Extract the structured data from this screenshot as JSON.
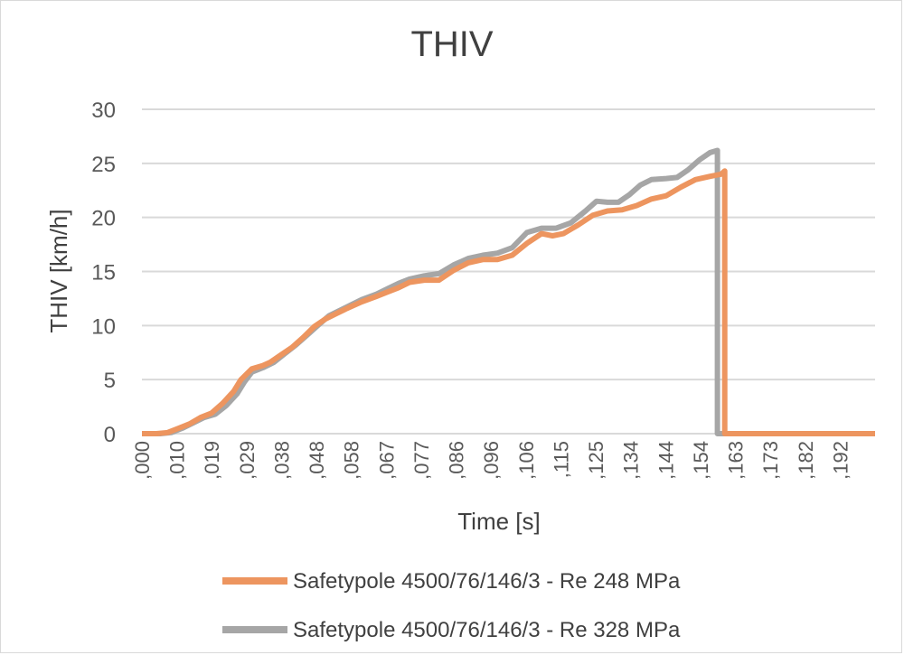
{
  "chart_data": {
    "type": "line",
    "title": "THIV",
    "xlabel": "Time [s]",
    "ylabel": "THIV [km/h]",
    "ylim": [
      0,
      30
    ],
    "yticks": [
      "0",
      "5",
      "10",
      "15",
      "20",
      "25",
      "30"
    ],
    "xlim": [
      0,
      0.2
    ],
    "xticks": [
      ",000",
      ",010",
      ",019",
      ",029",
      ",038",
      ",048",
      ",058",
      ",067",
      ",077",
      ",086",
      ",096",
      ",106",
      ",115",
      ",125",
      ",134",
      ",144",
      ",154",
      ",163",
      ",173",
      ",182",
      ",192"
    ],
    "grid": true,
    "legend_position": "bottom",
    "series": [
      {
        "name": "Safetypole 4500/76/146/3 - Re 248 MPa",
        "color": "#ed955f",
        "points": [
          [
            0.0,
            0.0
          ],
          [
            0.004,
            0.0
          ],
          [
            0.007,
            0.1
          ],
          [
            0.01,
            0.5
          ],
          [
            0.013,
            0.9
          ],
          [
            0.016,
            1.5
          ],
          [
            0.019,
            1.9
          ],
          [
            0.022,
            2.8
          ],
          [
            0.025,
            3.9
          ],
          [
            0.027,
            5.0
          ],
          [
            0.03,
            6.0
          ],
          [
            0.033,
            6.3
          ],
          [
            0.035,
            6.6
          ],
          [
            0.038,
            7.3
          ],
          [
            0.041,
            8.0
          ],
          [
            0.044,
            8.9
          ],
          [
            0.047,
            9.9
          ],
          [
            0.05,
            10.6
          ],
          [
            0.053,
            11.1
          ],
          [
            0.056,
            11.6
          ],
          [
            0.06,
            12.2
          ],
          [
            0.064,
            12.7
          ],
          [
            0.067,
            13.1
          ],
          [
            0.07,
            13.5
          ],
          [
            0.073,
            14.0
          ],
          [
            0.077,
            14.2
          ],
          [
            0.081,
            14.2
          ],
          [
            0.085,
            15.1
          ],
          [
            0.089,
            15.8
          ],
          [
            0.093,
            16.1
          ],
          [
            0.097,
            16.1
          ],
          [
            0.101,
            16.5
          ],
          [
            0.105,
            17.6
          ],
          [
            0.109,
            18.5
          ],
          [
            0.112,
            18.3
          ],
          [
            0.115,
            18.5
          ],
          [
            0.119,
            19.3
          ],
          [
            0.123,
            20.2
          ],
          [
            0.127,
            20.6
          ],
          [
            0.131,
            20.7
          ],
          [
            0.135,
            21.1
          ],
          [
            0.139,
            21.7
          ],
          [
            0.143,
            22.0
          ],
          [
            0.147,
            22.8
          ],
          [
            0.151,
            23.5
          ],
          [
            0.155,
            23.8
          ],
          [
            0.158,
            24.0
          ],
          [
            0.159,
            24.3
          ],
          [
            0.159,
            0.0
          ],
          [
            0.2,
            0.0
          ]
        ]
      },
      {
        "name": "Safetypole 4500/76/146/3 - Re 328 MPa",
        "color": "#a6a6a6",
        "points": [
          [
            0.0,
            0.0
          ],
          [
            0.005,
            0.0
          ],
          [
            0.008,
            0.1
          ],
          [
            0.011,
            0.5
          ],
          [
            0.014,
            1.0
          ],
          [
            0.017,
            1.5
          ],
          [
            0.02,
            1.8
          ],
          [
            0.023,
            2.6
          ],
          [
            0.026,
            3.7
          ],
          [
            0.028,
            4.8
          ],
          [
            0.03,
            5.7
          ],
          [
            0.033,
            6.1
          ],
          [
            0.036,
            6.6
          ],
          [
            0.039,
            7.4
          ],
          [
            0.042,
            8.2
          ],
          [
            0.045,
            9.1
          ],
          [
            0.048,
            10.0
          ],
          [
            0.051,
            10.9
          ],
          [
            0.054,
            11.4
          ],
          [
            0.057,
            11.9
          ],
          [
            0.06,
            12.4
          ],
          [
            0.064,
            12.9
          ],
          [
            0.067,
            13.4
          ],
          [
            0.07,
            13.9
          ],
          [
            0.073,
            14.3
          ],
          [
            0.077,
            14.6
          ],
          [
            0.081,
            14.8
          ],
          [
            0.085,
            15.6
          ],
          [
            0.089,
            16.2
          ],
          [
            0.093,
            16.5
          ],
          [
            0.097,
            16.7
          ],
          [
            0.101,
            17.2
          ],
          [
            0.105,
            18.6
          ],
          [
            0.109,
            19.0
          ],
          [
            0.113,
            19.0
          ],
          [
            0.117,
            19.5
          ],
          [
            0.121,
            20.6
          ],
          [
            0.124,
            21.5
          ],
          [
            0.127,
            21.4
          ],
          [
            0.13,
            21.4
          ],
          [
            0.133,
            22.1
          ],
          [
            0.136,
            23.0
          ],
          [
            0.139,
            23.5
          ],
          [
            0.143,
            23.6
          ],
          [
            0.146,
            23.7
          ],
          [
            0.149,
            24.4
          ],
          [
            0.152,
            25.3
          ],
          [
            0.155,
            26.0
          ],
          [
            0.157,
            26.2
          ],
          [
            0.157,
            0.0
          ],
          [
            0.2,
            0.0
          ]
        ]
      }
    ]
  }
}
